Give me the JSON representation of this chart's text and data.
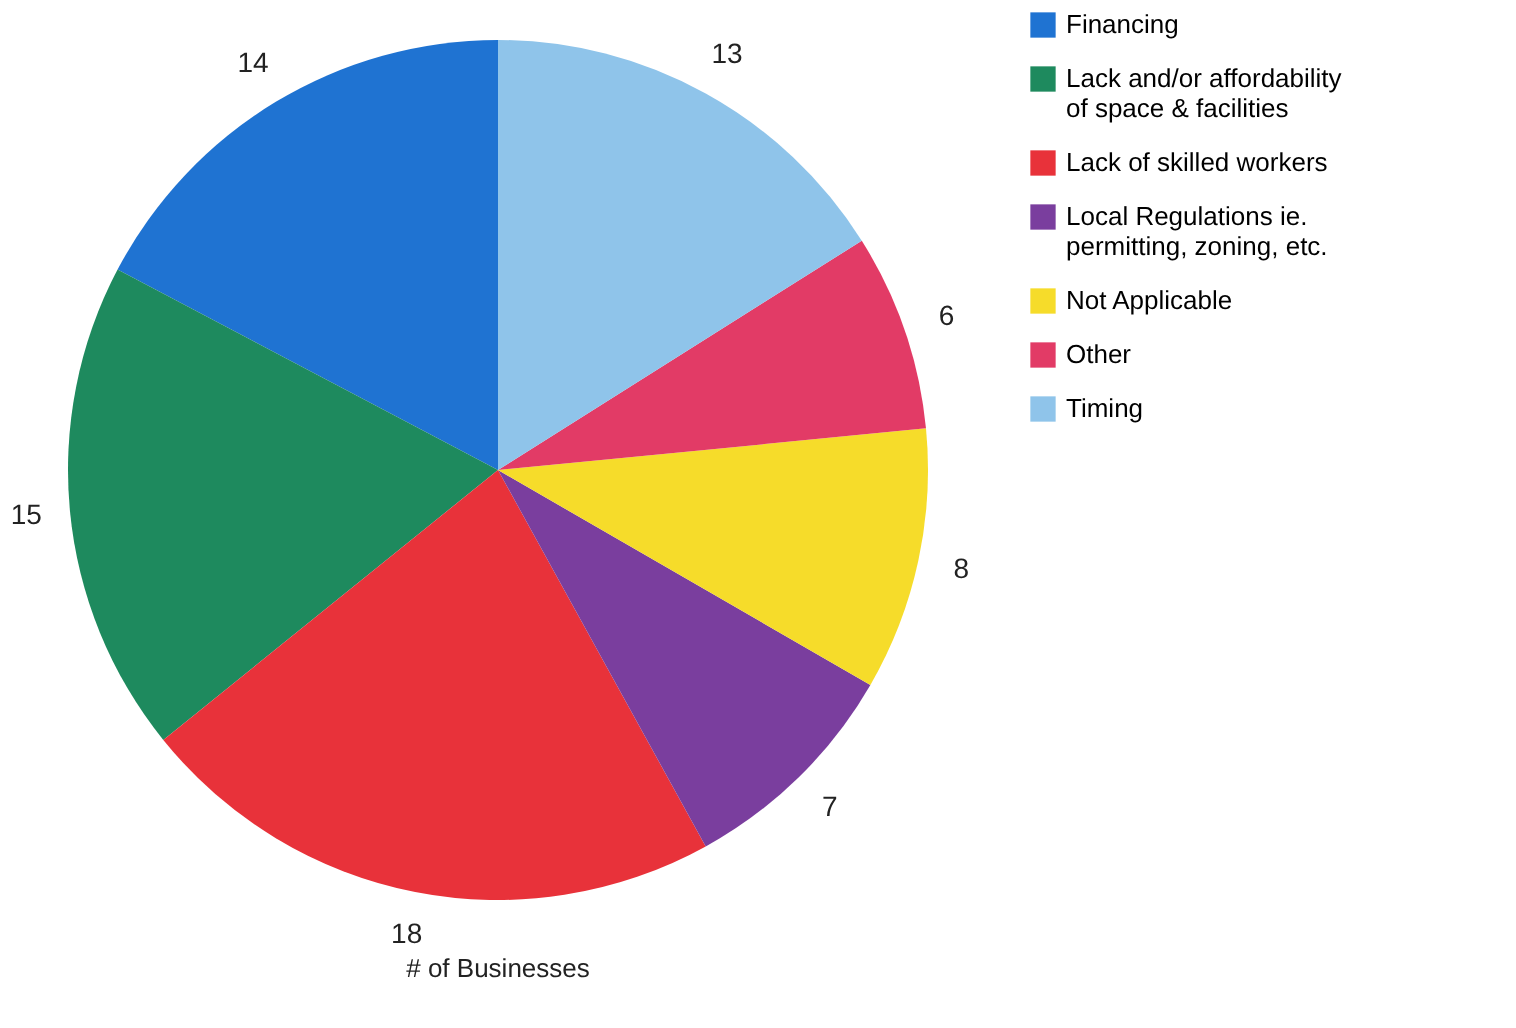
{
  "chart_data": {
    "type": "pie",
    "xlabel": "# of Businesses",
    "categories": [
      "Financing",
      "Lack and/or affordability of space & facilities",
      "Lack of skilled workers",
      "Local Regulations ie. permitting, zoning, etc.",
      "Not Applicable",
      "Other",
      "Timing"
    ],
    "values": [
      14,
      15,
      18,
      7,
      8,
      6,
      13
    ],
    "colors": [
      "#1f73d2",
      "#1e8a5e",
      "#e8323a",
      "#7a3e9e",
      "#f6dc2a",
      "#e23b66",
      "#8fc4ea"
    ],
    "data_labels": true,
    "legend": "top right"
  }
}
